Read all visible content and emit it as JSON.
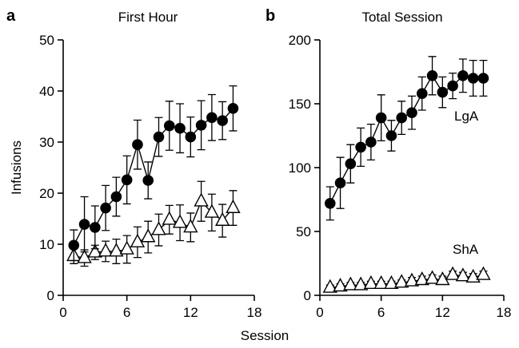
{
  "figure": {
    "shared_xlabel": "Session",
    "shared_ylabel": "Infusions"
  },
  "chart_data": [
    {
      "type": "line",
      "panel": "a",
      "title": "First Hour",
      "xlabel": "Session",
      "ylabel": "Infusions",
      "xlim": [
        0,
        18
      ],
      "ylim": [
        0,
        50
      ],
      "xticks": [
        0,
        6,
        12,
        18
      ],
      "yticks": [
        0,
        10,
        20,
        30,
        40,
        50
      ],
      "grid": false,
      "legend": "none",
      "x": [
        1,
        2,
        3,
        4,
        5,
        6,
        7,
        8,
        9,
        10,
        11,
        12,
        13,
        14,
        15,
        16
      ],
      "series": [
        {
          "marker": "filled-circle",
          "values": [
            9.8,
            13.9,
            13.3,
            17.1,
            19.3,
            22.6,
            29.5,
            22.5,
            31.0,
            33.2,
            32.7,
            31.0,
            33.3,
            34.8,
            34.2,
            36.6
          ],
          "errors": [
            3.0,
            5.4,
            4.2,
            4.4,
            3.8,
            4.7,
            4.8,
            3.6,
            3.8,
            4.8,
            4.8,
            3.9,
            4.8,
            4.5,
            3.7,
            4.4
          ]
        },
        {
          "marker": "open-triangle",
          "values": [
            7.7,
            7.3,
            8.4,
            8.6,
            8.6,
            9.0,
            10.4,
            11.4,
            12.8,
            14.8,
            14.2,
            13.3,
            18.4,
            16.2,
            14.6,
            17.1
          ],
          "errors": [
            1.5,
            1.6,
            1.4,
            2.0,
            2.4,
            2.7,
            3.0,
            3.1,
            3.1,
            2.8,
            3.5,
            2.8,
            3.9,
            3.6,
            3.2,
            3.4
          ]
        }
      ]
    },
    {
      "type": "line",
      "panel": "b",
      "title": "Total Session",
      "xlabel": "Session",
      "ylabel": "",
      "xlim": [
        0,
        18
      ],
      "ylim": [
        0,
        200
      ],
      "xticks": [
        0,
        6,
        12,
        18
      ],
      "yticks": [
        0,
        50,
        100,
        150,
        200
      ],
      "grid": false,
      "legend": "none",
      "annotations": [
        "LgA",
        "ShA"
      ],
      "x": [
        1,
        2,
        3,
        4,
        5,
        6,
        7,
        8,
        9,
        10,
        11,
        12,
        13,
        14,
        15,
        16
      ],
      "series": [
        {
          "name": "LgA",
          "marker": "filled-circle",
          "values": [
            72,
            88,
            103,
            116,
            120,
            139,
            125,
            139,
            143,
            158,
            172,
            159,
            164,
            172,
            170,
            170
          ],
          "errors": [
            13,
            20,
            15,
            15,
            14,
            18,
            12,
            13,
            13,
            13,
            15,
            12,
            10,
            13,
            14,
            14
          ]
        },
        {
          "name": "ShA",
          "marker": "open-triangle",
          "values": [
            6,
            7,
            8,
            8,
            9,
            9,
            9,
            10,
            11,
            12,
            13,
            12,
            16,
            15,
            14,
            16
          ],
          "errors": [
            2,
            2,
            2,
            2,
            2,
            2,
            2,
            2,
            3,
            3,
            3,
            3,
            3,
            3,
            3,
            3
          ]
        }
      ]
    }
  ]
}
